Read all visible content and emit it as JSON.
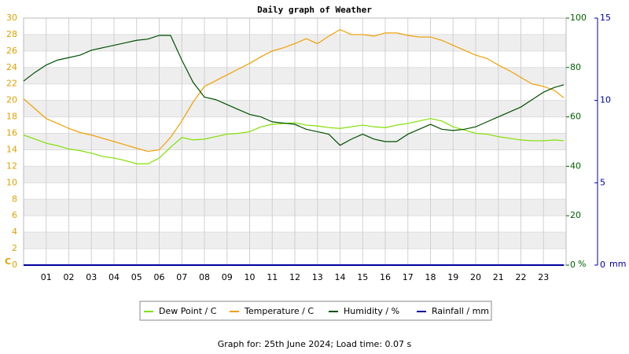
{
  "chart_data": {
    "type": "line",
    "title": "Daily graph of Weather",
    "footer": "Graph for: 25th June 2024; Load time: 0.07 s",
    "ylabel": "C",
    "y2label": "%",
    "y3label": "mm",
    "x": [
      0,
      0.5,
      1,
      1.5,
      2,
      2.5,
      3,
      3.5,
      4,
      4.5,
      5,
      5.5,
      6,
      6.5,
      7,
      7.5,
      8,
      8.5,
      9,
      9.5,
      10,
      10.5,
      11,
      11.5,
      12,
      12.5,
      13,
      13.5,
      14,
      14.5,
      15,
      15.5,
      16,
      16.5,
      17,
      17.5,
      18,
      18.5,
      19,
      19.5,
      20,
      20.5,
      21,
      21.5,
      22,
      22.5,
      23,
      23.5,
      23.9
    ],
    "xlim": [
      0,
      24
    ],
    "xticks": [
      {
        "value": 1,
        "label": "01"
      },
      {
        "value": 2,
        "label": "02"
      },
      {
        "value": 3,
        "label": "03"
      },
      {
        "value": 4,
        "label": "04"
      },
      {
        "value": 5,
        "label": "05"
      },
      {
        "value": 6,
        "label": "06"
      },
      {
        "value": 7,
        "label": "07"
      },
      {
        "value": 8,
        "label": "08"
      },
      {
        "value": 9,
        "label": "09"
      },
      10,
      11,
      12,
      13,
      14,
      15,
      16,
      17,
      18,
      19,
      20,
      21,
      22,
      23
    ],
    "ylim": [
      0,
      30
    ],
    "yticks": [
      0,
      2,
      4,
      6,
      8,
      10,
      12,
      14,
      16,
      18,
      20,
      22,
      24,
      26,
      28,
      30
    ],
    "y2lim": [
      0,
      100
    ],
    "y2ticks": [
      0,
      20,
      40,
      60,
      80,
      100
    ],
    "y3lim": [
      0,
      15
    ],
    "y3ticks": [
      0,
      5,
      10,
      15
    ],
    "grid": true,
    "series": [
      {
        "name": "Dew Point / C",
        "color": "#80e000",
        "axis": "y",
        "values": [
          15.8,
          15.3,
          14.8,
          14.5,
          14.1,
          13.9,
          13.6,
          13.2,
          13.0,
          12.7,
          12.3,
          12.3,
          13.0,
          14.3,
          15.5,
          15.2,
          15.3,
          15.6,
          15.9,
          16.0,
          16.2,
          16.8,
          17.1,
          17.2,
          17.3,
          17.0,
          16.9,
          16.7,
          16.6,
          16.8,
          17.0,
          16.8,
          16.7,
          17.0,
          17.2,
          17.5,
          17.8,
          17.5,
          16.8,
          16.4,
          16.0,
          15.9,
          15.6,
          15.4,
          15.2,
          15.1,
          15.1,
          15.2,
          15.1
        ]
      },
      {
        "name": "Temperature / C",
        "color": "#f0a000",
        "axis": "y",
        "values": [
          20.2,
          19.0,
          17.8,
          17.2,
          16.6,
          16.1,
          15.8,
          15.4,
          15.0,
          14.6,
          14.2,
          13.8,
          14.0,
          15.5,
          17.5,
          19.8,
          21.7,
          22.4,
          23.1,
          23.8,
          24.5,
          25.3,
          26.0,
          26.4,
          26.9,
          27.5,
          26.9,
          27.8,
          28.6,
          28.0,
          28.0,
          27.8,
          28.2,
          28.2,
          27.9,
          27.7,
          27.7,
          27.3,
          26.7,
          26.1,
          25.5,
          25.1,
          24.3,
          23.6,
          22.8,
          22.0,
          21.7,
          21.2,
          20.3
        ]
      },
      {
        "name": "Humidity / %",
        "color": "#005000",
        "axis": "y2",
        "values": [
          74.5,
          78,
          81,
          83,
          84,
          85,
          87,
          88,
          89,
          90,
          91,
          91.5,
          93,
          93,
          83,
          74,
          68,
          67,
          65,
          63,
          61,
          60,
          58,
          57.5,
          57,
          55,
          54,
          53,
          48.5,
          51,
          53,
          51,
          50,
          50,
          53,
          55,
          57,
          55,
          54.5,
          55,
          56,
          58,
          60,
          62,
          64,
          67,
          70,
          72,
          73
        ]
      },
      {
        "name": "Rainfall / mm",
        "color": "#0000a0",
        "axis": "y3",
        "values": [
          0,
          0,
          0,
          0,
          0,
          0,
          0,
          0,
          0,
          0,
          0,
          0,
          0,
          0,
          0,
          0,
          0,
          0,
          0,
          0,
          0,
          0,
          0,
          0,
          0,
          0,
          0,
          0,
          0,
          0,
          0,
          0,
          0,
          0,
          0,
          0,
          0,
          0,
          0,
          0,
          0,
          0,
          0,
          0,
          0,
          0,
          0,
          0,
          0
        ]
      }
    ]
  }
}
